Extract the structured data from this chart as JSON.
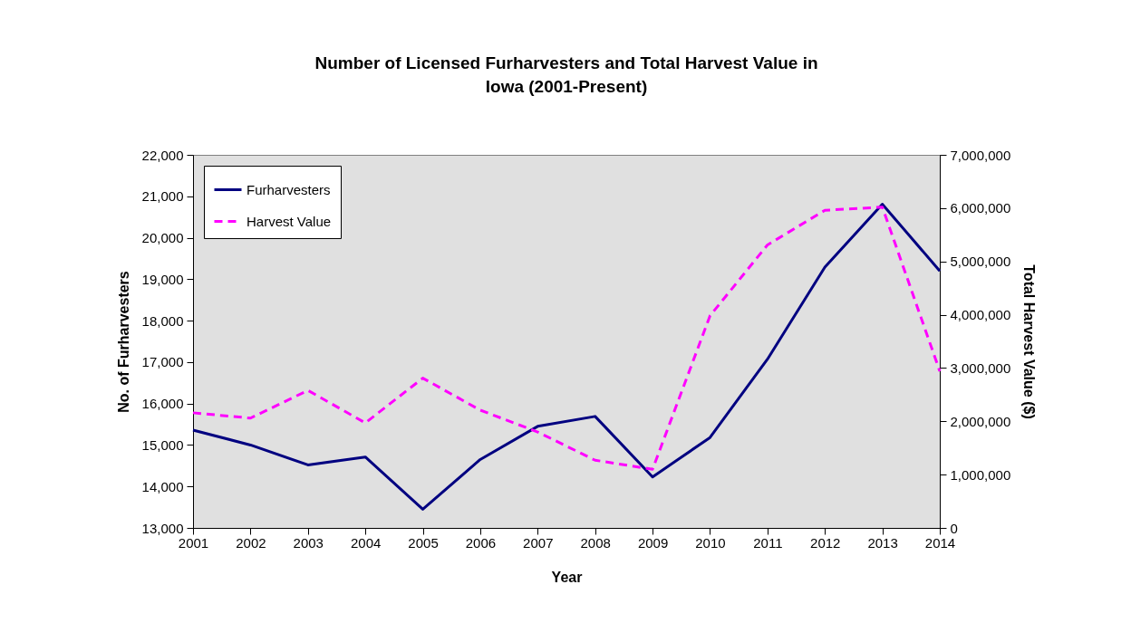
{
  "chart_data": {
    "type": "line",
    "title": "Number of Licensed Furharvesters and Total Harvest Value in Iowa (2001-Present)",
    "xlabel": "Year",
    "ylabel": "No. of Furharvesters",
    "y2label": "Total Harvest Value ($)",
    "categories": [
      "2001",
      "2002",
      "2003",
      "2004",
      "2005",
      "2006",
      "2007",
      "2008",
      "2009",
      "2010",
      "2011",
      "2012",
      "2013",
      "2014"
    ],
    "series": [
      {
        "name": "Furharvesters",
        "color": "#000080",
        "line_style": "solid",
        "values": [
          15360,
          15000,
          14520,
          14710,
          13450,
          14650,
          15450,
          15690,
          14230,
          15180,
          17070,
          19290,
          20810,
          19200
        ]
      },
      {
        "name": "Harvest Value",
        "color": "#ff00ff",
        "line_style": "dashed",
        "axis": "y2",
        "values": [
          2160000,
          2060000,
          2580000,
          1970000,
          2810000,
          2210000,
          1800000,
          1270000,
          1100000,
          3980000,
          5310000,
          5960000,
          6020000,
          2940000
        ]
      }
    ],
    "ylim": [
      13000,
      22000
    ],
    "yticks": [
      {
        "value": 13000,
        "label": "13,000"
      },
      {
        "value": 14000,
        "label": "14,000"
      },
      {
        "value": 15000,
        "label": "15,000"
      },
      {
        "value": 16000,
        "label": "16,000"
      },
      {
        "value": 17000,
        "label": "17,000"
      },
      {
        "value": 18000,
        "label": "18,000"
      },
      {
        "value": 19000,
        "label": "19,000"
      },
      {
        "value": 20000,
        "label": "20,000"
      },
      {
        "value": 21000,
        "label": "21,000"
      },
      {
        "value": 22000,
        "label": "22,000"
      }
    ],
    "y2lim": [
      0,
      7000000
    ],
    "y2ticks": [
      0,
      {
        "value": 1000000,
        "label": "1,000,000"
      },
      {
        "value": 2000000,
        "label": "2,000,000"
      },
      {
        "value": 3000000,
        "label": "3,000,000"
      },
      {
        "value": 4000000,
        "label": "4,000,000"
      },
      {
        "value": 5000000,
        "label": "5,000,000"
      },
      {
        "value": 6000000,
        "label": "6,000,000"
      },
      {
        "value": 7000000,
        "label": "7,000,000"
      }
    ],
    "grid": false,
    "legend": "top left",
    "marker": "none"
  }
}
